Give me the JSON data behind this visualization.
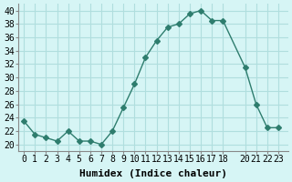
{
  "x": [
    0,
    1,
    2,
    3,
    4,
    5,
    6,
    7,
    8,
    9,
    10,
    11,
    12,
    13,
    14,
    15,
    16,
    17,
    18,
    20,
    21,
    22,
    23
  ],
  "y": [
    23.5,
    21.5,
    21.0,
    20.5,
    22.0,
    20.5,
    20.5,
    20.0,
    22.0,
    25.5,
    29.0,
    33.0,
    35.5,
    37.5,
    38.0,
    39.5,
    40.0,
    38.5,
    38.5,
    31.5,
    26.0,
    22.5,
    22.5
  ],
  "line_color": "#2e7d6e",
  "marker": "D",
  "marker_size": 3,
  "bg_color": "#d6f5f5",
  "grid_color": "#b0dede",
  "xlabel": "Humidex (Indice chaleur)",
  "xticks": [
    0,
    1,
    2,
    3,
    4,
    5,
    6,
    7,
    8,
    9,
    10,
    11,
    12,
    13,
    14,
    15,
    16,
    17,
    18,
    20,
    21,
    22,
    23
  ],
  "xtick_labels": [
    "0",
    "1",
    "2",
    "3",
    "4",
    "5",
    "6",
    "7",
    "8",
    "9",
    "10",
    "11",
    "12",
    "13",
    "14",
    "15",
    "16",
    "17",
    "18",
    "20",
    "21",
    "22",
    "23"
  ],
  "yticks": [
    20,
    22,
    24,
    26,
    28,
    30,
    32,
    34,
    36,
    38,
    40
  ],
  "xlim": [
    -0.5,
    23.9
  ],
  "ylim": [
    19,
    41
  ],
  "xlabel_fontsize": 8,
  "tick_fontsize": 7
}
